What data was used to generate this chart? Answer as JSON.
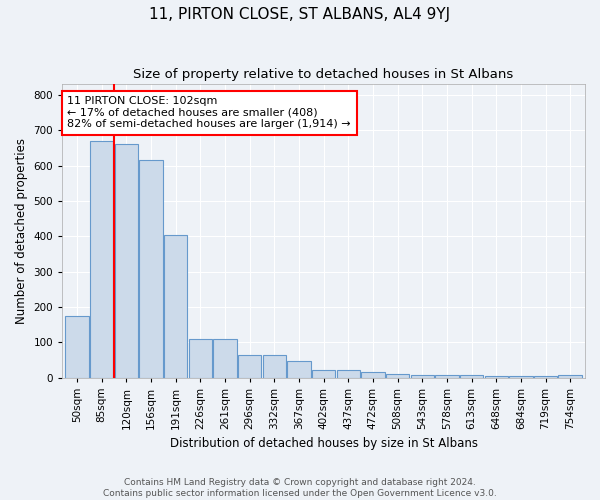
{
  "title": "11, PIRTON CLOSE, ST ALBANS, AL4 9YJ",
  "subtitle": "Size of property relative to detached houses in St Albans",
  "xlabel": "Distribution of detached houses by size in St Albans",
  "ylabel": "Number of detached properties",
  "footer_line1": "Contains HM Land Registry data © Crown copyright and database right 2024.",
  "footer_line2": "Contains public sector information licensed under the Open Government Licence v3.0.",
  "categories": [
    "50sqm",
    "85sqm",
    "120sqm",
    "156sqm",
    "191sqm",
    "226sqm",
    "261sqm",
    "296sqm",
    "332sqm",
    "367sqm",
    "402sqm",
    "437sqm",
    "472sqm",
    "508sqm",
    "543sqm",
    "578sqm",
    "613sqm",
    "648sqm",
    "684sqm",
    "719sqm",
    "754sqm"
  ],
  "bar_heights": [
    175,
    670,
    660,
    615,
    405,
    110,
    110,
    65,
    65,
    48,
    20,
    20,
    15,
    10,
    8,
    6,
    6,
    5,
    4,
    4,
    6
  ],
  "bar_color": "#ccdaea",
  "bar_edge_color": "#6699cc",
  "vline_position": 1.5,
  "annotation_text": "11 PIRTON CLOSE: 102sqm\n← 17% of detached houses are smaller (408)\n82% of semi-detached houses are larger (1,914) →",
  "annotation_box_color": "white",
  "annotation_box_edge": "red",
  "vline_color": "red",
  "ylim": [
    0,
    830
  ],
  "yticks": [
    0,
    100,
    200,
    300,
    400,
    500,
    600,
    700,
    800
  ],
  "background_color": "#eef2f7",
  "grid_color": "white",
  "title_fontsize": 11,
  "subtitle_fontsize": 9.5,
  "axis_label_fontsize": 8.5,
  "tick_fontsize": 7.5,
  "annotation_fontsize": 8,
  "footer_fontsize": 6.5
}
